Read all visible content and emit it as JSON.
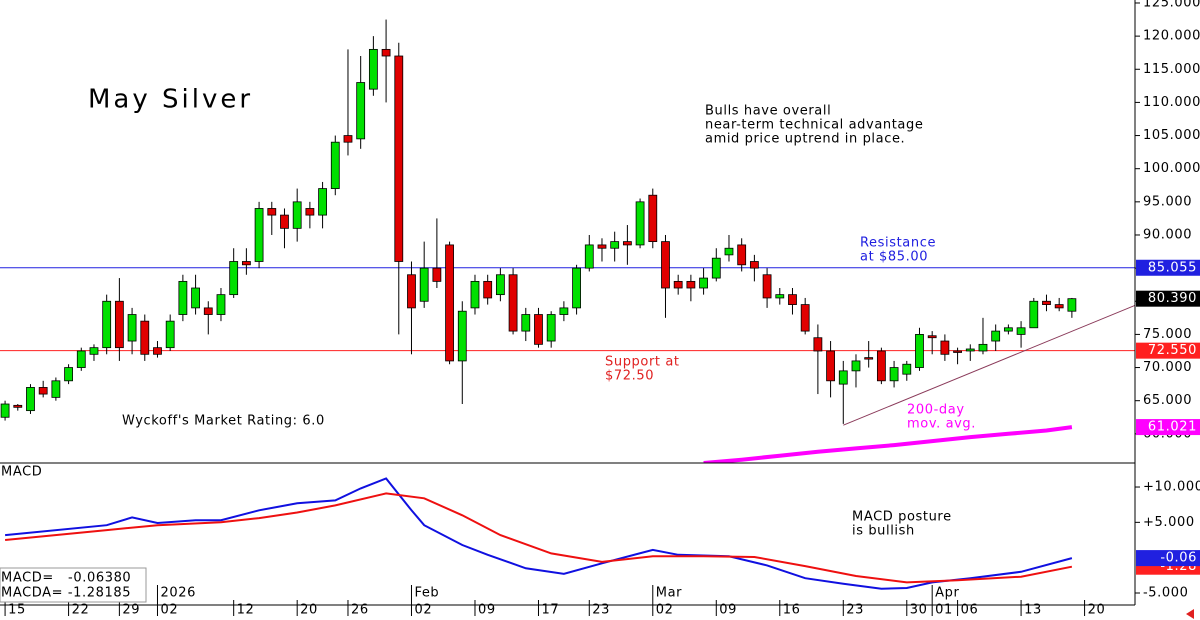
{
  "chart_data": [
    {
      "type": "candlestick",
      "title": "May Silver",
      "note": [
        "Bulls have overall",
        "near-term technical advantage",
        "amid price uptrend in place."
      ],
      "resistance_note": [
        "Resistance",
        "at $85.00"
      ],
      "support_note": [
        "Support at",
        "$72.50"
      ],
      "rating": "Wyckoff's Market Rating: 6.0",
      "ma_note": [
        "200-day",
        "mov. avg."
      ],
      "xlim": [
        -0.4,
        88.97
      ],
      "ylim": [
        55.6,
        125.45
      ],
      "yticks": [
        {
          "value": 60,
          "label": "60.000"
        },
        {
          "value": 65,
          "label": "65.000"
        },
        {
          "value": 70,
          "label": "70.000"
        },
        {
          "value": 75,
          "label": "75.000"
        },
        {
          "value": 80,
          "label": "80.000"
        },
        {
          "value": 85,
          "label": "85.000"
        },
        {
          "value": 90,
          "label": "90.000"
        },
        {
          "value": 95,
          "label": "95.000"
        },
        {
          "value": 100,
          "label": "100.000"
        },
        {
          "value": 105,
          "label": "105.000"
        },
        {
          "value": 110,
          "label": "110.000"
        },
        {
          "value": 115,
          "label": "115.000"
        },
        {
          "value": 120,
          "label": "120.000"
        },
        {
          "value": 125,
          "label": "125.000"
        }
      ],
      "up_color": "#00e000",
      "down_color": "#e00000",
      "open": [
        62.5,
        64.3,
        63.5,
        67,
        65.5,
        68,
        70,
        72,
        73,
        80,
        74,
        77,
        73,
        73,
        78,
        79,
        79,
        78,
        81,
        86,
        86,
        94,
        93,
        91,
        94,
        93,
        97,
        105,
        104.5,
        112,
        118,
        117,
        84,
        80,
        85,
        88.5,
        71,
        79,
        83,
        81,
        84,
        75.5,
        78,
        74,
        78,
        79,
        85,
        88.5,
        88,
        89,
        88.5,
        96,
        89,
        83,
        83,
        82,
        83.5,
        87,
        88.5,
        86,
        84,
        80.5,
        81,
        79.5,
        74.5,
        72.5,
        67.5,
        69.5,
        71.5,
        72.5,
        68,
        69,
        70,
        74.8,
        74,
        72.5,
        72.5,
        72.5,
        74,
        75.5,
        75,
        76,
        80,
        79.5,
        78.5
      ],
      "high": [
        65,
        64.5,
        67.5,
        68,
        68.5,
        70.5,
        73,
        73.5,
        81,
        83.5,
        79,
        78,
        74,
        78,
        84,
        84,
        80,
        82,
        88,
        88,
        95,
        95,
        94,
        97,
        95,
        98,
        105,
        118,
        117,
        120,
        122.5,
        119,
        86,
        89,
        92.5,
        89,
        80,
        84,
        84,
        85,
        85,
        79,
        79,
        78.5,
        80,
        85.5,
        90,
        89.5,
        90.5,
        91.5,
        95.5,
        97,
        90,
        84,
        84,
        85,
        88,
        90,
        89.5,
        87,
        85,
        82,
        82,
        80.5,
        76.5,
        74,
        71,
        72,
        74,
        73,
        71,
        71,
        76,
        75.5,
        75,
        73,
        73.5,
        77.5,
        76.5,
        76.5,
        77,
        80.5,
        81,
        80.5,
        80.5
      ],
      "low": [
        62,
        63.5,
        63,
        65.5,
        65,
        67.5,
        69.5,
        71,
        72,
        71,
        72,
        71,
        71.5,
        72.5,
        77,
        78,
        75,
        77,
        80.5,
        84,
        85,
        90,
        88,
        89,
        91,
        91,
        96,
        102,
        103,
        111,
        110,
        75,
        72,
        79,
        82,
        70.5,
        64.5,
        78,
        79.5,
        80,
        75,
        74,
        73,
        73,
        77,
        78,
        84.5,
        86,
        86,
        85.5,
        88,
        88,
        77.5,
        81,
        80,
        81,
        83,
        86,
        84.5,
        83,
        79,
        79.5,
        78,
        75,
        66,
        65.5,
        61.5,
        67,
        70,
        67.5,
        67,
        68,
        69.5,
        72,
        71,
        70.5,
        71,
        72,
        72.5,
        75,
        73,
        76,
        78.5,
        78.5,
        77.5
      ],
      "close": [
        64.5,
        64,
        67,
        66,
        68,
        70,
        72.5,
        73,
        80,
        73,
        78,
        72,
        72,
        77,
        83,
        82,
        78,
        81,
        86,
        85.5,
        94,
        93,
        91,
        95,
        93,
        97,
        104,
        104,
        113,
        118,
        117,
        86,
        79,
        85,
        83,
        71,
        78.5,
        83,
        80.5,
        84,
        75.5,
        78,
        73.5,
        78,
        79,
        85,
        88.5,
        88,
        89,
        88.5,
        95,
        89,
        82,
        82,
        82,
        83.5,
        86.5,
        88,
        85.5,
        85,
        80.5,
        81,
        79.5,
        75.5,
        72.5,
        68,
        69.5,
        71,
        71.3,
        68,
        70,
        70.5,
        75,
        74.5,
        72,
        72.3,
        72.8,
        73.5,
        75.5,
        76,
        76,
        80,
        79.5,
        79,
        80.39
      ],
      "moving_average": {
        "color": "#ff00ff",
        "x": [
          55,
          58,
          61,
          64,
          67,
          70,
          73,
          76,
          79,
          82,
          84
        ],
        "values": [
          55.6,
          56.1,
          56.7,
          57.3,
          57.8,
          58.3,
          58.9,
          59.5,
          60.0,
          60.5,
          61.021
        ]
      },
      "trendline": {
        "color": "#8a3a5a",
        "x": [
          66,
          89
        ],
        "values": [
          61.3,
          79.4
        ]
      },
      "tags": [
        {
          "value": 85.055,
          "color": "#2020e0",
          "line": true
        },
        {
          "value": 80.39,
          "label": "80.390",
          "color": "#000000"
        },
        {
          "value": 72.55,
          "label": "72.550",
          "color": "#ff2020",
          "line": true
        },
        {
          "value": 61.021,
          "color": "#ff00ff"
        }
      ]
    },
    {
      "type": "line",
      "title": "MACD",
      "note": [
        "MACD posture",
        "is bullish"
      ],
      "readout": [
        "MACD=   -0.06380",
        "MACDA= -1.28185"
      ],
      "xlim": [
        -0.4,
        88.97
      ],
      "ylim": [
        -6.7,
        13.4
      ],
      "yticks": [
        {
          "value": 10,
          "label": "+10.000"
        },
        {
          "value": 5,
          "label": "+5.000"
        },
        {
          "value": -5,
          "label": "-5.000"
        }
      ],
      "xticks": [
        {
          "value": 0,
          "label": "15"
        },
        {
          "value": 5,
          "label": "22"
        },
        {
          "value": 9,
          "label": "29"
        },
        {
          "value": 12,
          "label": "02"
        },
        {
          "value": 18,
          "label": "12"
        },
        {
          "value": 23,
          "label": "20"
        },
        {
          "value": 27,
          "label": "26"
        },
        {
          "value": 32,
          "label": "02"
        },
        {
          "value": 37,
          "label": "09"
        },
        {
          "value": 42,
          "label": "17"
        },
        {
          "value": 46,
          "label": "23"
        },
        {
          "value": 51,
          "label": "02"
        },
        {
          "value": 56,
          "label": "09"
        },
        {
          "value": 61,
          "label": "16"
        },
        {
          "value": 66,
          "label": "23"
        },
        {
          "value": 71,
          "label": "30"
        },
        {
          "value": 73,
          "label": "01"
        },
        {
          "value": 75,
          "label": "06"
        },
        {
          "value": 80,
          "label": "13"
        },
        {
          "value": 85,
          "label": "20"
        }
      ],
      "month_ticks": [
        {
          "value": 12,
          "label": "2026"
        },
        {
          "value": 32,
          "label": "Feb"
        },
        {
          "value": 51,
          "label": "Mar"
        },
        {
          "value": 73,
          "label": "Apr"
        }
      ],
      "series": [
        {
          "color": "#1010e0",
          "x": [
            0,
            8,
            10,
            12,
            15,
            17,
            20,
            23,
            26,
            28,
            30,
            32,
            33,
            36,
            38,
            41,
            44,
            47,
            51,
            53,
            57,
            60,
            63,
            66,
            69,
            71,
            73,
            76,
            80,
            84
          ],
          "values": [
            3.2,
            4.6,
            5.7,
            4.9,
            5.3,
            5.3,
            6.7,
            7.7,
            8.1,
            9.8,
            11.2,
            6.7,
            4.6,
            1.8,
            0.4,
            -1.5,
            -2.3,
            -0.8,
            1.1,
            0.4,
            0.2,
            -1.1,
            -2.9,
            -3.7,
            -4.4,
            -4.3,
            -3.5,
            -2.9,
            -2.0,
            -0.0638
          ]
        },
        {
          "color": "#ee1010",
          "x": [
            0,
            8,
            12,
            17,
            20,
            23,
            26,
            30,
            33,
            36,
            39,
            43,
            47,
            51,
            55,
            59,
            63,
            67,
            71,
            75,
            80,
            84
          ],
          "values": [
            2.5,
            3.9,
            4.6,
            5.0,
            5.6,
            6.4,
            7.4,
            9.1,
            8.4,
            6.0,
            3.2,
            0.6,
            -0.6,
            0.2,
            0.2,
            0.1,
            -1.2,
            -2.6,
            -3.5,
            -3.2,
            -2.7,
            -1.28185
          ]
        }
      ],
      "tags": [
        {
          "value": -1.28,
          "color": "#ff2020"
        },
        {
          "value": -0.06,
          "color": "#2020e0"
        }
      ]
    }
  ]
}
